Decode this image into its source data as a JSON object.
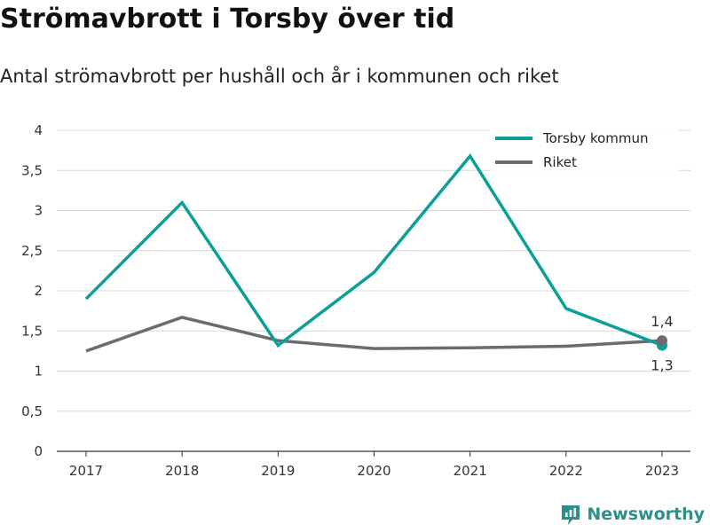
{
  "chart_data": {
    "type": "line",
    "title": "Strömavbrott i Torsby över tid",
    "subtitle": "Antal strömavbrott per hushåll och år i kommunen och riket",
    "xlabel": "",
    "ylabel": "",
    "categories": [
      "2017",
      "2018",
      "2019",
      "2020",
      "2021",
      "2022",
      "2023"
    ],
    "y_ticks": [
      {
        "value": 0,
        "label": "0"
      },
      {
        "value": 0.5,
        "label": "0,5"
      },
      {
        "value": 1,
        "label": "1"
      },
      {
        "value": 1.5,
        "label": "1,5"
      },
      {
        "value": 2,
        "label": "2"
      },
      {
        "value": 2.5,
        "label": "2,5"
      },
      {
        "value": 3,
        "label": "3"
      },
      {
        "value": 3.5,
        "label": "3,5"
      },
      {
        "value": 4,
        "label": "4"
      }
    ],
    "ylim": [
      0,
      4
    ],
    "grid": true,
    "legend_position": "top-right",
    "series": [
      {
        "name": "Torsby kommun",
        "color": "#0aa099",
        "values": [
          1.9,
          3.1,
          1.32,
          2.23,
          3.68,
          1.78,
          1.32
        ],
        "end_label": "1,3"
      },
      {
        "name": "Riket",
        "color": "#6c6b72",
        "values": [
          1.25,
          1.67,
          1.38,
          1.28,
          1.29,
          1.31,
          1.38
        ],
        "end_label": "1,4"
      }
    ]
  },
  "brand": {
    "name": "Newsworthy",
    "icon": "bar-chart-logo-icon",
    "color": "#2b8f8a"
  }
}
